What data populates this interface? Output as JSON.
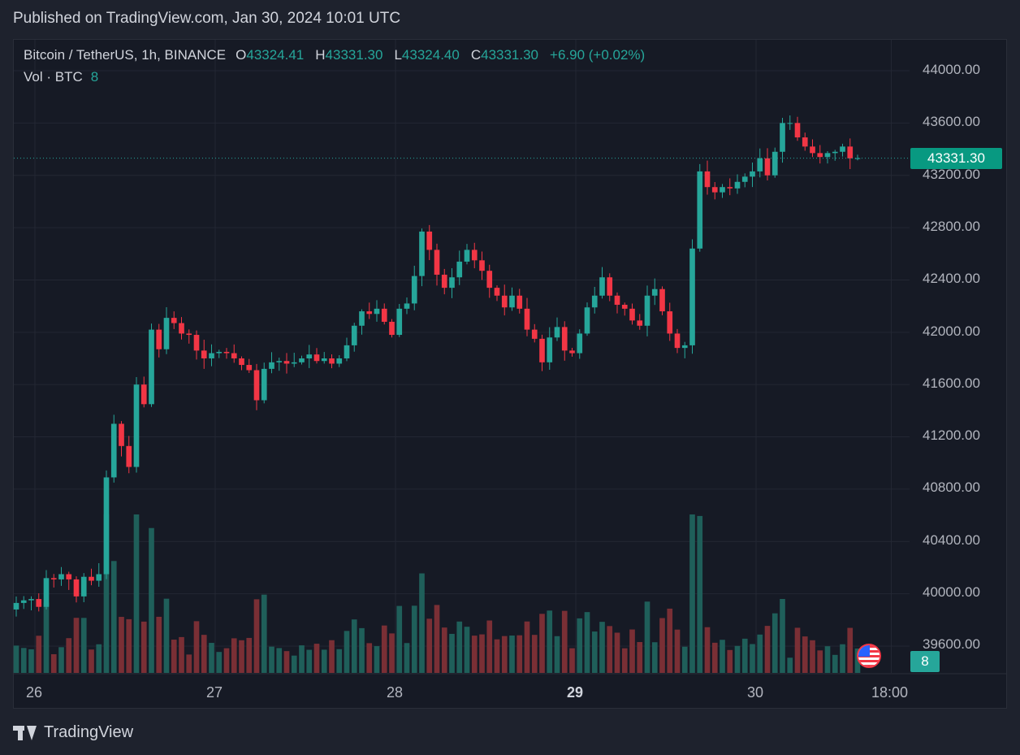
{
  "header": {
    "published": "Published on TradingView.com, Jan 30, 2024 10:01 UTC"
  },
  "legend": {
    "symbol": "Bitcoin / TetherUS, 1h, BINANCE",
    "o_label": "O",
    "o_value": "43324.41",
    "h_label": "H",
    "h_value": "43331.30",
    "l_label": "L",
    "l_value": "43324.40",
    "c_label": "C",
    "c_value": "43331.30",
    "change": "+6.90 (+0.02%)",
    "vol_label": "Vol · BTC",
    "vol_value": "8"
  },
  "price_tag": "43331.30",
  "vol_tag": "8",
  "footer": {
    "brand": "TradingView"
  },
  "colors": {
    "up": "#26a69a",
    "down": "#f23645",
    "vol_up": "#1f5f5a",
    "vol_down": "#7a2f35",
    "background": "#161a25",
    "grid": "#232733"
  },
  "icons": {
    "flag": "us-flag-icon",
    "logo": "tradingview-logo-icon"
  },
  "chart_data": {
    "type": "candlestick",
    "title": "Bitcoin / TetherUS, 1h, BINANCE",
    "interval": "1h",
    "ylim": [
      39450,
      44250
    ],
    "y_ticks": [
      "44000.00",
      "43600.00",
      "43200.00",
      "42800.00",
      "42400.00",
      "42000.00",
      "41600.00",
      "41200.00",
      "40800.00",
      "40400.00",
      "40000.00",
      "39600.00"
    ],
    "x_ticks": [
      {
        "label": "26",
        "hour": 0,
        "bold": false
      },
      {
        "label": "27",
        "hour": 24,
        "bold": false
      },
      {
        "label": "28",
        "hour": 48,
        "bold": false
      },
      {
        "label": "29",
        "hour": 72,
        "bold": true
      },
      {
        "label": "30",
        "hour": 96,
        "bold": false
      },
      {
        "label": "18:00",
        "hour": 114,
        "bold": false
      }
    ],
    "last_price": 43331.3,
    "grid": true,
    "close": [
      39930,
      39950,
      39960,
      39900,
      40120,
      40110,
      40150,
      40110,
      39980,
      40130,
      40100,
      40150,
      40890,
      41300,
      41130,
      40970,
      41600,
      41450,
      42020,
      41870,
      42110,
      42070,
      41990,
      41980,
      41860,
      41800,
      41840,
      41850,
      41840,
      41800,
      41750,
      41710,
      41480,
      41720,
      41770,
      41780,
      41760,
      41770,
      41800,
      41830,
      41780,
      41800,
      41760,
      41800,
      41900,
      42050,
      42160,
      42140,
      42180,
      42080,
      41980,
      42180,
      42220,
      42430,
      42770,
      42630,
      42440,
      42340,
      42420,
      42540,
      42630,
      42550,
      42470,
      42340,
      42280,
      42190,
      42280,
      42180,
      42020,
      41950,
      41770,
      41960,
      42040,
      41860,
      41840,
      41990,
      42190,
      42280,
      42420,
      42280,
      42210,
      42180,
      42090,
      42050,
      42280,
      42330,
      42160,
      41990,
      41880,
      41900,
      42640,
      43230,
      43110,
      43070,
      43110,
      43100,
      43150,
      43190,
      43230,
      43330,
      43200,
      43380,
      43600,
      43600,
      43490,
      43420,
      43370,
      43340,
      43370,
      43380,
      43420,
      43330,
      43331
    ]
  }
}
